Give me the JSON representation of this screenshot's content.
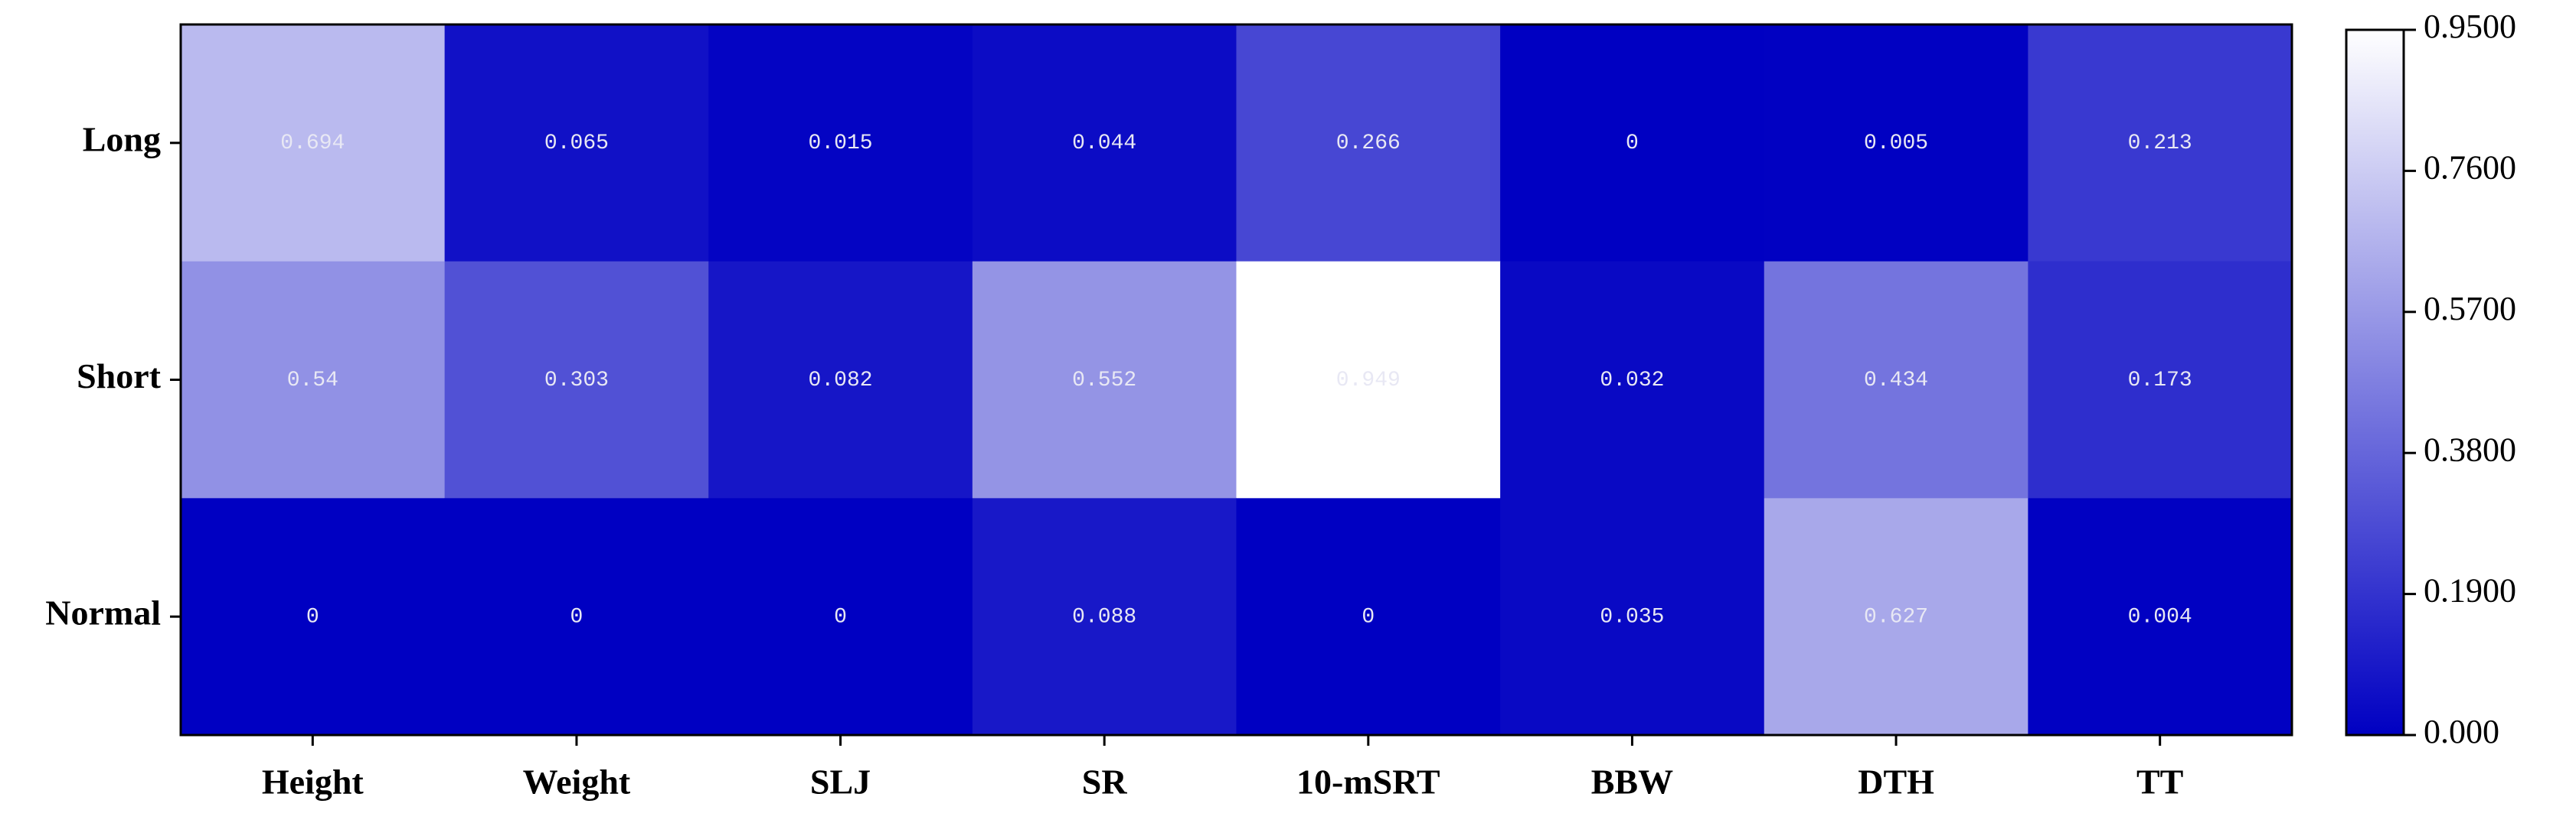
{
  "chart_data": {
    "type": "heatmap",
    "x_categories": [
      "Height",
      "Weight",
      "SLJ",
      "SR",
      "10-mSRT",
      "BBW",
      "DTH",
      "TT"
    ],
    "y_categories": [
      "Long",
      "Short",
      "Normal"
    ],
    "values": [
      [
        0.694,
        0.065,
        0.015,
        0.044,
        0.266,
        0,
        0.005,
        0.213
      ],
      [
        0.54,
        0.303,
        0.082,
        0.552,
        0.949,
        0.032,
        0.434,
        0.173
      ],
      [
        0,
        0,
        0,
        0.088,
        0,
        0.035,
        0.627,
        0.004
      ]
    ],
    "colormap": [
      "#0000c2",
      "#ffffff"
    ],
    "clim": [
      0,
      0.95
    ],
    "cticks": [
      {
        "value": 0,
        "label": "0.000"
      },
      {
        "value": 0.19,
        "label": "0.1900"
      },
      {
        "value": 0.38,
        "label": "0.3800"
      },
      {
        "value": 0.57,
        "label": "0.5700"
      },
      {
        "value": 0.76,
        "label": "0.7600"
      },
      {
        "value": 0.95,
        "label": "0.9500"
      }
    ]
  }
}
